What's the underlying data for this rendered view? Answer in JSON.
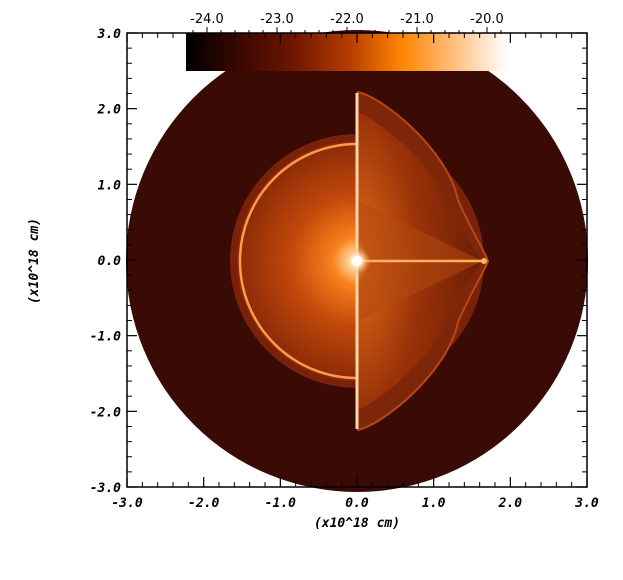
{
  "chart_data": {
    "type": "heatmap",
    "title": "",
    "xlabel": "(x10^18 cm)",
    "ylabel": "(x10^18 cm)",
    "xlim": [
      -3.0,
      3.0
    ],
    "ylim": [
      -3.0,
      3.0
    ],
    "xticks": [
      "-3.0",
      "-2.0",
      "-1.0",
      "0.0",
      "1.0",
      "2.0",
      "3.0"
    ],
    "yticks": [
      "-3.0",
      "-2.0",
      "-1.0",
      "0.0",
      "1.0",
      "2.0",
      "3.0"
    ],
    "colorbar": {
      "orientation": "horizontal",
      "placement": "top",
      "range": [
        -24.3,
        -19.7
      ],
      "ticks": [
        "-24.0",
        "-23.0",
        "-22.0",
        "-21.0",
        "-20.0"
      ],
      "colormap": [
        "#000000",
        "#3a0800",
        "#6e1600",
        "#b33a00",
        "#ff8400",
        "#ffc080",
        "#ffffff"
      ]
    },
    "regions": [
      {
        "name": "outer-disk",
        "radius": 3.0,
        "color": "#3a0a04"
      },
      {
        "name": "middle-disk",
        "radius": 1.65,
        "color": "#7a2209"
      },
      {
        "name": "inner-shell",
        "radius": 1.57,
        "color": "#ff8c3a"
      }
    ],
    "features": {
      "vertical_line_y_range": [
        -2.2,
        2.2
      ],
      "horizontal_jet_x_end": 1.68,
      "center_point": [
        0.0,
        0.0
      ]
    }
  }
}
